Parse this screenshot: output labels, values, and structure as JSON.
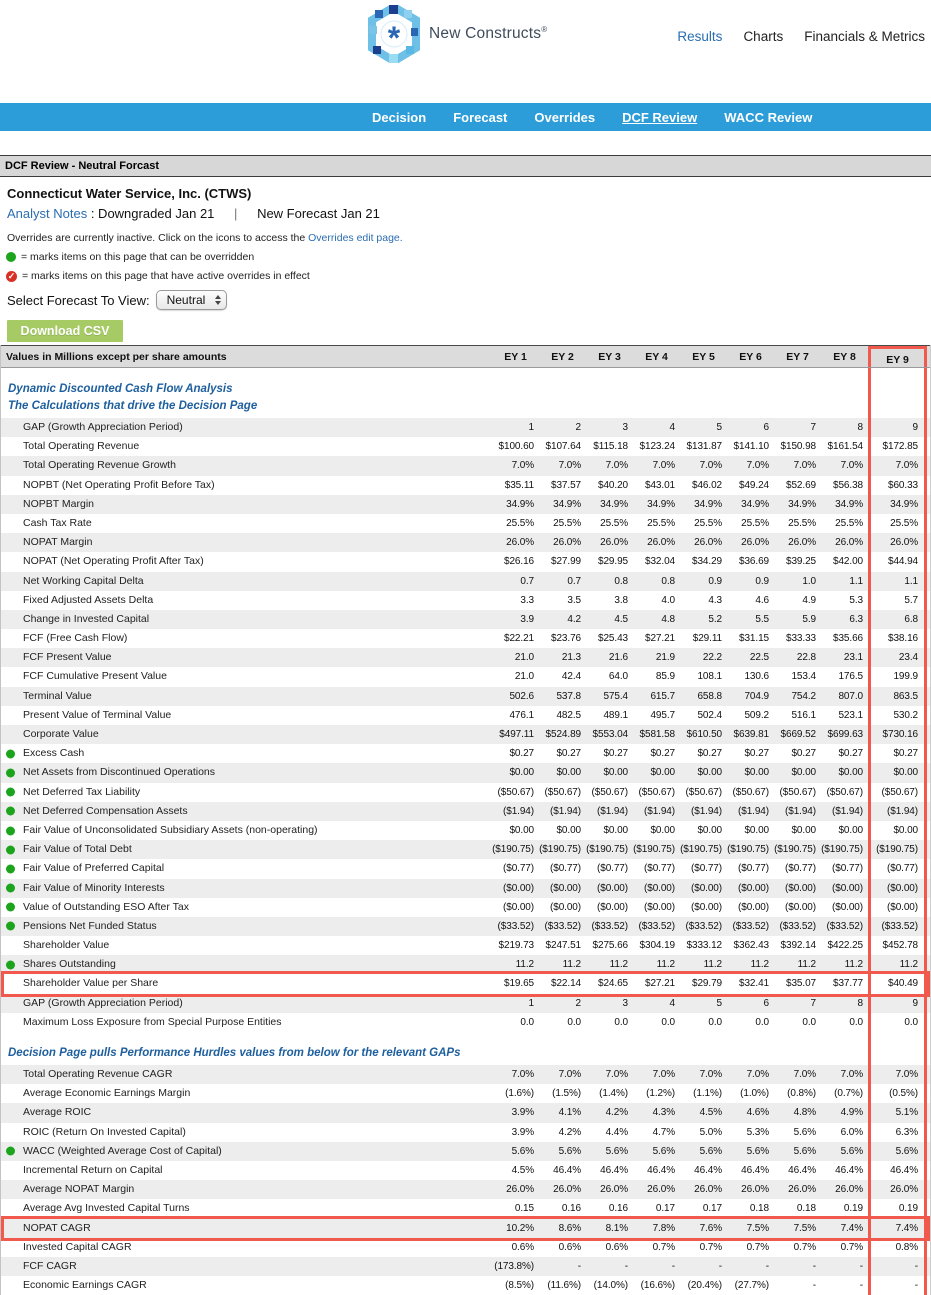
{
  "header": {
    "brand": "New Constructs",
    "brand_reg": "®",
    "nav": [
      {
        "label": "Results",
        "active": true
      },
      {
        "label": "Charts",
        "active": false
      },
      {
        "label": "Financials & Metrics",
        "active": false
      }
    ]
  },
  "subnav": [
    {
      "label": "Decision",
      "active": false
    },
    {
      "label": "Forecast",
      "active": false
    },
    {
      "label": "Overrides",
      "active": false
    },
    {
      "label": "DCF Review",
      "active": true
    },
    {
      "label": "WACC Review",
      "active": false
    }
  ],
  "page": {
    "title": "DCF Review - Neutral Forcast",
    "company": "Connecticut Water Service, Inc. (CTWS)",
    "analyst_link": "Analyst Notes",
    "analyst_note1": ": Downgraded Jan 21",
    "analyst_sep": "|",
    "analyst_note2": "New Forecast Jan 21",
    "overrides_note": "Overrides are currently inactive. Click on the icons to access the ",
    "overrides_link": "Overrides edit page.",
    "legend_green": "= marks items on this page that can be overridden",
    "legend_red": "= marks items on this page that have active overrides in effect",
    "select_label": "Select Forecast To View:",
    "select_value": "Neutral",
    "download_button": "Download CSV"
  },
  "colors": {
    "navbar": "#2c9dd8",
    "link": "#2a6db0",
    "sectitle": "#1e5f9e",
    "red": "#f0594c",
    "green": "#1ca51c",
    "actred": "#d93025",
    "btngreen": "#a6cb64",
    "stripe": "#ededee",
    "bargray": "#d7d7d7"
  },
  "table": {
    "header_label": "Values in Millions except per share amounts",
    "columns": [
      "EY 1",
      "EY 2",
      "EY 3",
      "EY 4",
      "EY 5",
      "EY 6",
      "EY 7",
      "EY 8",
      "EY 9"
    ],
    "sections": [
      {
        "title_lines": [
          "Dynamic Discounted Cash Flow Analysis",
          "The Calculations that drive the Decision Page"
        ],
        "rows": [
          {
            "label": "GAP (Growth Appreciation Period)",
            "values": [
              "1",
              "2",
              "3",
              "4",
              "5",
              "6",
              "7",
              "8",
              "9"
            ]
          },
          {
            "label": "Total Operating Revenue",
            "values": [
              "$100.60",
              "$107.64",
              "$115.18",
              "$123.24",
              "$131.87",
              "$141.10",
              "$150.98",
              "$161.54",
              "$172.85"
            ]
          },
          {
            "label": "Total Operating Revenue Growth",
            "values": [
              "7.0%",
              "7.0%",
              "7.0%",
              "7.0%",
              "7.0%",
              "7.0%",
              "7.0%",
              "7.0%",
              "7.0%"
            ]
          },
          {
            "label": "NOPBT (Net Operating Profit Before Tax)",
            "values": [
              "$35.11",
              "$37.57",
              "$40.20",
              "$43.01",
              "$46.02",
              "$49.24",
              "$52.69",
              "$56.38",
              "$60.33"
            ]
          },
          {
            "label": "NOPBT Margin",
            "values": [
              "34.9%",
              "34.9%",
              "34.9%",
              "34.9%",
              "34.9%",
              "34.9%",
              "34.9%",
              "34.9%",
              "34.9%"
            ]
          },
          {
            "label": "Cash Tax Rate",
            "values": [
              "25.5%",
              "25.5%",
              "25.5%",
              "25.5%",
              "25.5%",
              "25.5%",
              "25.5%",
              "25.5%",
              "25.5%"
            ]
          },
          {
            "label": "NOPAT Margin",
            "values": [
              "26.0%",
              "26.0%",
              "26.0%",
              "26.0%",
              "26.0%",
              "26.0%",
              "26.0%",
              "26.0%",
              "26.0%"
            ]
          },
          {
            "label": "NOPAT (Net Operating Profit After Tax)",
            "values": [
              "$26.16",
              "$27.99",
              "$29.95",
              "$32.04",
              "$34.29",
              "$36.69",
              "$39.25",
              "$42.00",
              "$44.94"
            ]
          },
          {
            "label": "Net Working Capital Delta",
            "values": [
              "0.7",
              "0.7",
              "0.8",
              "0.8",
              "0.9",
              "0.9",
              "1.0",
              "1.1",
              "1.1"
            ]
          },
          {
            "label": "Fixed Adjusted Assets Delta",
            "values": [
              "3.3",
              "3.5",
              "3.8",
              "4.0",
              "4.3",
              "4.6",
              "4.9",
              "5.3",
              "5.7"
            ]
          },
          {
            "label": "Change in Invested Capital",
            "values": [
              "3.9",
              "4.2",
              "4.5",
              "4.8",
              "5.2",
              "5.5",
              "5.9",
              "6.3",
              "6.8"
            ]
          },
          {
            "label": "FCF (Free Cash Flow)",
            "values": [
              "$22.21",
              "$23.76",
              "$25.43",
              "$27.21",
              "$29.11",
              "$31.15",
              "$33.33",
              "$35.66",
              "$38.16"
            ]
          },
          {
            "label": "FCF Present Value",
            "values": [
              "21.0",
              "21.3",
              "21.6",
              "21.9",
              "22.2",
              "22.5",
              "22.8",
              "23.1",
              "23.4"
            ]
          },
          {
            "label": "FCF Cumulative Present Value",
            "values": [
              "21.0",
              "42.4",
              "64.0",
              "85.9",
              "108.1",
              "130.6",
              "153.4",
              "176.5",
              "199.9"
            ]
          },
          {
            "label": "Terminal Value",
            "values": [
              "502.6",
              "537.8",
              "575.4",
              "615.7",
              "658.8",
              "704.9",
              "754.2",
              "807.0",
              "863.5"
            ]
          },
          {
            "label": "Present Value of Terminal Value",
            "values": [
              "476.1",
              "482.5",
              "489.1",
              "495.7",
              "502.4",
              "509.2",
              "516.1",
              "523.1",
              "530.2"
            ]
          },
          {
            "label": "Corporate Value",
            "values": [
              "$497.11",
              "$524.89",
              "$553.04",
              "$581.58",
              "$610.50",
              "$639.81",
              "$669.52",
              "$699.63",
              "$730.16"
            ]
          },
          {
            "label": "Excess Cash",
            "dot": true,
            "values": [
              "$0.27",
              "$0.27",
              "$0.27",
              "$0.27",
              "$0.27",
              "$0.27",
              "$0.27",
              "$0.27",
              "$0.27"
            ]
          },
          {
            "label": "Net Assets from Discontinued Operations",
            "dot": true,
            "values": [
              "$0.00",
              "$0.00",
              "$0.00",
              "$0.00",
              "$0.00",
              "$0.00",
              "$0.00",
              "$0.00",
              "$0.00"
            ]
          },
          {
            "label": "Net Deferred Tax Liability",
            "dot": true,
            "values": [
              "($50.67)",
              "($50.67)",
              "($50.67)",
              "($50.67)",
              "($50.67)",
              "($50.67)",
              "($50.67)",
              "($50.67)",
              "($50.67)"
            ]
          },
          {
            "label": "Net Deferred Compensation Assets",
            "dot": true,
            "values": [
              "($1.94)",
              "($1.94)",
              "($1.94)",
              "($1.94)",
              "($1.94)",
              "($1.94)",
              "($1.94)",
              "($1.94)",
              "($1.94)"
            ]
          },
          {
            "label": "Fair Value of Unconsolidated Subsidiary Assets (non-operating)",
            "dot": true,
            "values": [
              "$0.00",
              "$0.00",
              "$0.00",
              "$0.00",
              "$0.00",
              "$0.00",
              "$0.00",
              "$0.00",
              "$0.00"
            ]
          },
          {
            "label": "Fair Value of Total Debt",
            "dot": true,
            "values": [
              "($190.75)",
              "($190.75)",
              "($190.75)",
              "($190.75)",
              "($190.75)",
              "($190.75)",
              "($190.75)",
              "($190.75)",
              "($190.75)"
            ]
          },
          {
            "label": "Fair Value of Preferred Capital",
            "dot": true,
            "values": [
              "($0.77)",
              "($0.77)",
              "($0.77)",
              "($0.77)",
              "($0.77)",
              "($0.77)",
              "($0.77)",
              "($0.77)",
              "($0.77)"
            ]
          },
          {
            "label": "Fair Value of Minority Interests",
            "dot": true,
            "values": [
              "($0.00)",
              "($0.00)",
              "($0.00)",
              "($0.00)",
              "($0.00)",
              "($0.00)",
              "($0.00)",
              "($0.00)",
              "($0.00)"
            ]
          },
          {
            "label": "Value of Outstanding ESO After Tax",
            "dot": true,
            "values": [
              "($0.00)",
              "($0.00)",
              "($0.00)",
              "($0.00)",
              "($0.00)",
              "($0.00)",
              "($0.00)",
              "($0.00)",
              "($0.00)"
            ]
          },
          {
            "label": "Pensions Net Funded Status",
            "dot": true,
            "values": [
              "($33.52)",
              "($33.52)",
              "($33.52)",
              "($33.52)",
              "($33.52)",
              "($33.52)",
              "($33.52)",
              "($33.52)",
              "($33.52)"
            ]
          },
          {
            "label": "Shareholder Value",
            "values": [
              "$219.73",
              "$247.51",
              "$275.66",
              "$304.19",
              "$333.12",
              "$362.43",
              "$392.14",
              "$422.25",
              "$452.78"
            ]
          },
          {
            "label": "Shares Outstanding",
            "dot": true,
            "values": [
              "11.2",
              "11.2",
              "11.2",
              "11.2",
              "11.2",
              "11.2",
              "11.2",
              "11.2",
              "11.2"
            ]
          },
          {
            "label": "Shareholder Value per Share",
            "highlight": true,
            "values": [
              "$19.65",
              "$22.14",
              "$24.65",
              "$27.21",
              "$29.79",
              "$32.41",
              "$35.07",
              "$37.77",
              "$40.49"
            ]
          },
          {
            "label": "GAP (Growth Appreciation Period)",
            "values": [
              "1",
              "2",
              "3",
              "4",
              "5",
              "6",
              "7",
              "8",
              "9"
            ]
          },
          {
            "label": "Maximum Loss Exposure from Special Purpose Entities",
            "values": [
              "0.0",
              "0.0",
              "0.0",
              "0.0",
              "0.0",
              "0.0",
              "0.0",
              "0.0",
              "0.0"
            ]
          }
        ]
      },
      {
        "title_lines": [
          "Decision Page pulls Performance Hurdles values from below for the relevant GAPs"
        ],
        "rows": [
          {
            "label": "Total Operating Revenue CAGR",
            "values": [
              "7.0%",
              "7.0%",
              "7.0%",
              "7.0%",
              "7.0%",
              "7.0%",
              "7.0%",
              "7.0%",
              "7.0%"
            ]
          },
          {
            "label": "Average Economic Earnings Margin",
            "values": [
              "(1.6%)",
              "(1.5%)",
              "(1.4%)",
              "(1.2%)",
              "(1.1%)",
              "(1.0%)",
              "(0.8%)",
              "(0.7%)",
              "(0.5%)"
            ]
          },
          {
            "label": "Average ROIC",
            "values": [
              "3.9%",
              "4.1%",
              "4.2%",
              "4.3%",
              "4.5%",
              "4.6%",
              "4.8%",
              "4.9%",
              "5.1%"
            ]
          },
          {
            "label": "ROIC (Return On Invested Capital)",
            "values": [
              "3.9%",
              "4.2%",
              "4.4%",
              "4.7%",
              "5.0%",
              "5.3%",
              "5.6%",
              "6.0%",
              "6.3%"
            ]
          },
          {
            "label": "WACC (Weighted Average Cost of Capital)",
            "dot": true,
            "values": [
              "5.6%",
              "5.6%",
              "5.6%",
              "5.6%",
              "5.6%",
              "5.6%",
              "5.6%",
              "5.6%",
              "5.6%"
            ]
          },
          {
            "label": "Incremental Return on Capital",
            "values": [
              "4.5%",
              "46.4%",
              "46.4%",
              "46.4%",
              "46.4%",
              "46.4%",
              "46.4%",
              "46.4%",
              "46.4%"
            ]
          },
          {
            "label": "Average NOPAT Margin",
            "values": [
              "26.0%",
              "26.0%",
              "26.0%",
              "26.0%",
              "26.0%",
              "26.0%",
              "26.0%",
              "26.0%",
              "26.0%"
            ]
          },
          {
            "label": "Average Avg Invested Capital Turns",
            "values": [
              "0.15",
              "0.16",
              "0.16",
              "0.17",
              "0.17",
              "0.18",
              "0.18",
              "0.19",
              "0.19"
            ]
          },
          {
            "label": "NOPAT CAGR",
            "highlight": true,
            "values": [
              "10.2%",
              "8.6%",
              "8.1%",
              "7.8%",
              "7.6%",
              "7.5%",
              "7.5%",
              "7.4%",
              "7.4%"
            ]
          },
          {
            "label": "Invested Capital CAGR",
            "values": [
              "0.6%",
              "0.6%",
              "0.6%",
              "0.7%",
              "0.7%",
              "0.7%",
              "0.7%",
              "0.7%",
              "0.8%"
            ]
          },
          {
            "label": "FCF CAGR",
            "values": [
              "(173.8%)",
              "-",
              "-",
              "-",
              "-",
              "-",
              "-",
              "-",
              "-"
            ]
          },
          {
            "label": "Economic Earnings CAGR",
            "values": [
              "(8.5%)",
              "(11.6%)",
              "(14.0%)",
              "(16.6%)",
              "(20.4%)",
              "(27.7%)",
              "-",
              "-",
              "-"
            ]
          }
        ]
      }
    ]
  }
}
